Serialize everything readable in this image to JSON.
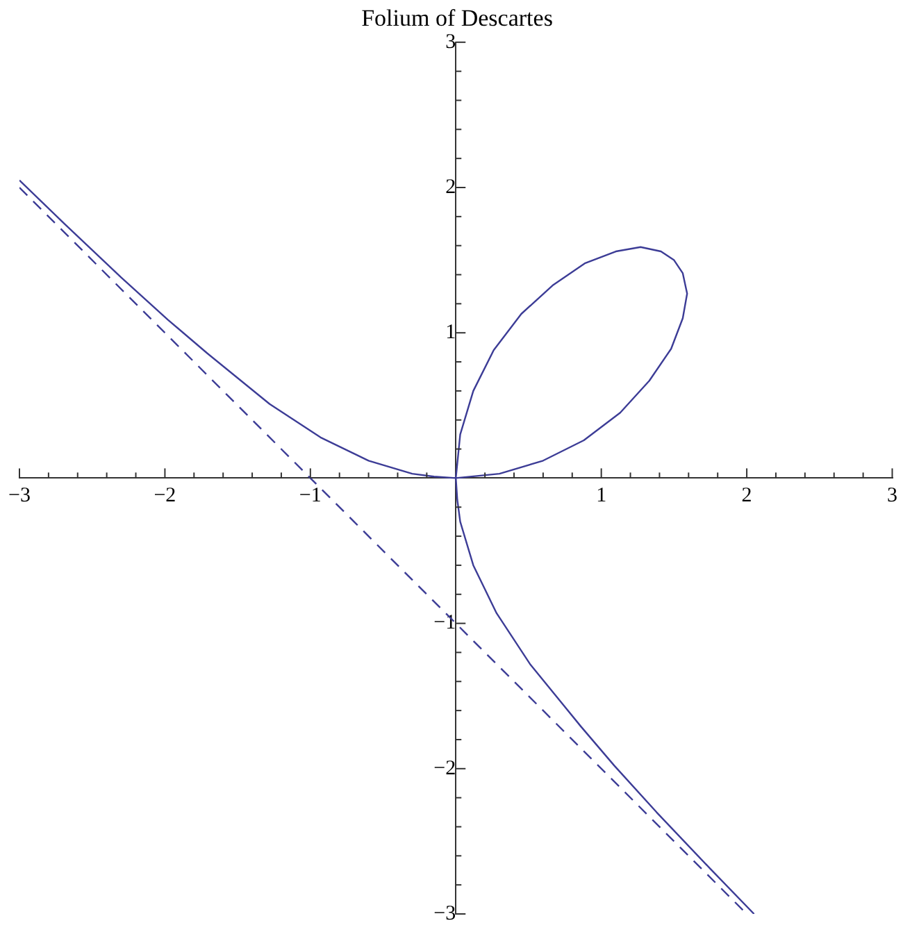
{
  "chart_data": {
    "type": "line",
    "title": "Folium of Descartes",
    "xlim": [
      -3,
      3
    ],
    "ylim": [
      -3,
      3
    ],
    "xticks": [
      -3,
      {
        "value": -2.8,
        "label": null
      },
      {
        "value": -2.6,
        "label": null
      },
      {
        "value": -2.4,
        "label": null
      },
      {
        "value": -2.2,
        "label": null
      },
      -2,
      {
        "value": -1.8,
        "label": null
      },
      {
        "value": -1.6,
        "label": null
      },
      {
        "value": -1.4,
        "label": null
      },
      {
        "value": -1.2,
        "label": null
      },
      -1,
      {
        "value": -0.8,
        "label": null
      },
      {
        "value": -0.6,
        "label": null
      },
      {
        "value": -0.4,
        "label": null
      },
      {
        "value": -0.2,
        "label": null
      },
      {
        "value": 0.2,
        "label": null
      },
      {
        "value": 0.4,
        "label": null
      },
      {
        "value": 0.6,
        "label": null
      },
      {
        "value": 0.8,
        "label": null
      },
      1,
      {
        "value": 1.2,
        "label": null
      },
      {
        "value": 1.4,
        "label": null
      },
      {
        "value": 1.6,
        "label": null
      },
      {
        "value": 1.8,
        "label": null
      },
      2,
      {
        "value": 2.2,
        "label": null
      },
      {
        "value": 2.4,
        "label": null
      },
      {
        "value": 2.6,
        "label": null
      },
      {
        "value": 2.8,
        "label": null
      },
      3
    ],
    "yticks": [
      -3,
      {
        "value": -2.8,
        "label": null
      },
      {
        "value": -2.6,
        "label": null
      },
      {
        "value": -2.4,
        "label": null
      },
      {
        "value": -2.2,
        "label": null
      },
      -2,
      {
        "value": -1.8,
        "label": null
      },
      {
        "value": -1.6,
        "label": null
      },
      {
        "value": -1.4,
        "label": null
      },
      {
        "value": -1.2,
        "label": null
      },
      -1,
      {
        "value": -0.8,
        "label": null
      },
      {
        "value": -0.6,
        "label": null
      },
      {
        "value": -0.4,
        "label": null
      },
      {
        "value": -0.2,
        "label": null
      },
      {
        "value": 0.2,
        "label": null
      },
      {
        "value": 0.4,
        "label": null
      },
      {
        "value": 0.6,
        "label": null
      },
      {
        "value": 0.8,
        "label": null
      },
      1,
      {
        "value": 1.2,
        "label": null
      },
      {
        "value": 1.4,
        "label": null
      },
      {
        "value": 1.6,
        "label": null
      },
      {
        "value": 1.8,
        "label": null
      },
      2,
      {
        "value": 2.2,
        "label": null
      },
      {
        "value": 2.4,
        "label": null
      },
      {
        "value": 2.6,
        "label": null
      },
      {
        "value": 2.8,
        "label": null
      },
      3
    ],
    "grid": false,
    "legend": false,
    "marker": "none",
    "series": [
      {
        "color": "#3c3c96",
        "line_style": "solid",
        "x": [
          2.05,
          1.75,
          1.38,
          1.09,
          0.86,
          0.51,
          0.28,
          0.12,
          0.03,
          0.01,
          0,
          0.03,
          0.12,
          0.26,
          0.45,
          0.67,
          0.89,
          1.1,
          1.27,
          1.41,
          1.5,
          1.56,
          1.59,
          1.56,
          1.48,
          1.33,
          1.13,
          0.88,
          0.6,
          0.3,
          0,
          -0.15,
          -0.3,
          -0.6,
          -0.93,
          -1.28,
          -1.71,
          -1.98,
          -2.3,
          -2.69,
          -3
        ],
        "values": [
          -3,
          -2.69,
          -2.3,
          -1.98,
          -1.71,
          -1.28,
          -0.93,
          -0.6,
          -0.3,
          -0.15,
          0,
          0.3,
          0.6,
          0.88,
          1.13,
          1.33,
          1.48,
          1.56,
          1.59,
          1.56,
          1.5,
          1.41,
          1.27,
          1.1,
          0.89,
          0.67,
          0.45,
          0.26,
          0.12,
          0.03,
          0,
          0.01,
          0.03,
          0.12,
          0.28,
          0.51,
          0.86,
          1.09,
          1.38,
          1.75,
          2.05
        ]
      },
      {
        "color": "#3c3c96",
        "line_style": "dashed",
        "x": [
          -3,
          2
        ],
        "values": [
          2,
          -3
        ]
      }
    ]
  }
}
